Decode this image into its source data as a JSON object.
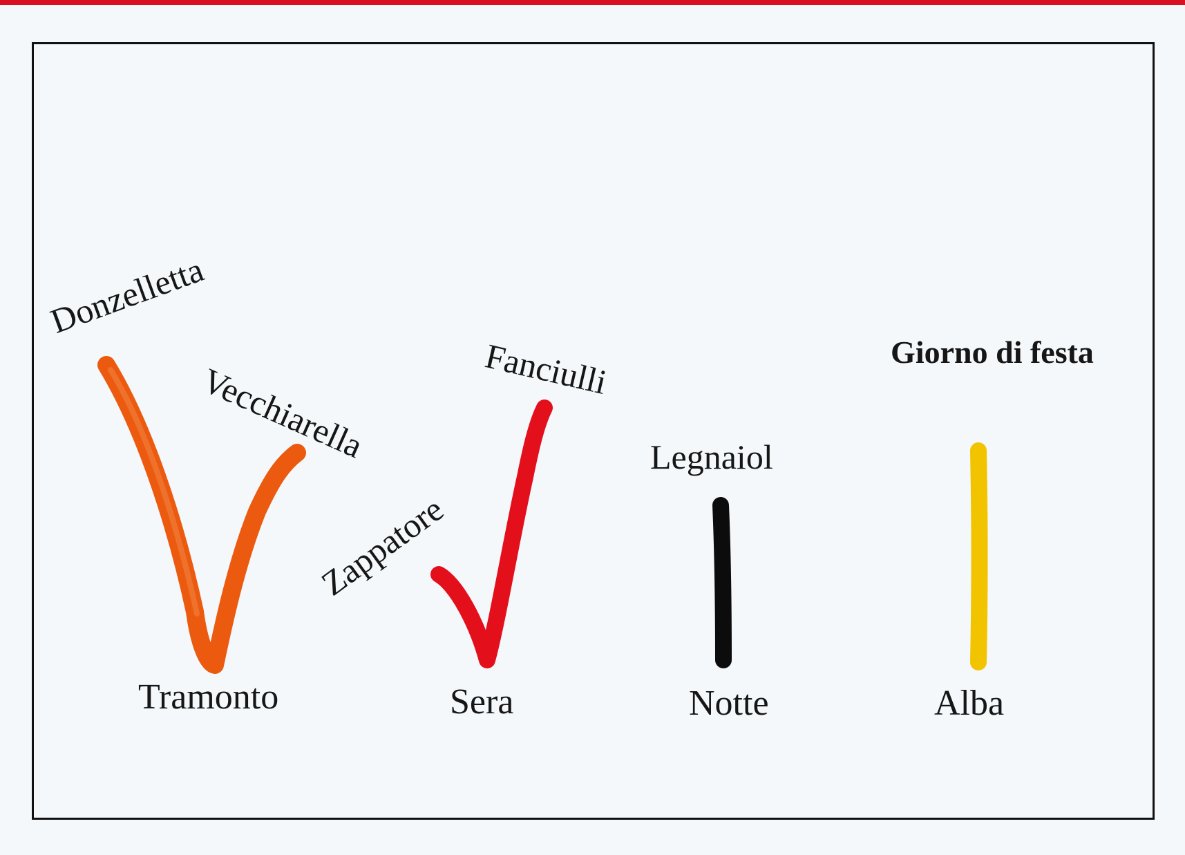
{
  "colors": {
    "tramonto": "#ec5a10",
    "sera": "#e3101c",
    "notte": "#0c0c0c",
    "alba": "#f2c400",
    "frame": "#111111",
    "top_band": "#d81020"
  },
  "columns": [
    {
      "key": "tramonto",
      "label": "Tramonto",
      "branch_labels": [
        "Donzelletta",
        "Vecchiarella"
      ],
      "shape": "V"
    },
    {
      "key": "sera",
      "label": "Sera",
      "branch_labels": [
        "Zappatore",
        "Fanciulli"
      ],
      "shape": "check"
    },
    {
      "key": "notte",
      "label": "Notte",
      "branch_labels": [
        "Legnaiol"
      ],
      "shape": "line"
    },
    {
      "key": "alba",
      "label": "Alba",
      "branch_labels": [
        "Giorno di festa"
      ],
      "shape": "line"
    }
  ]
}
